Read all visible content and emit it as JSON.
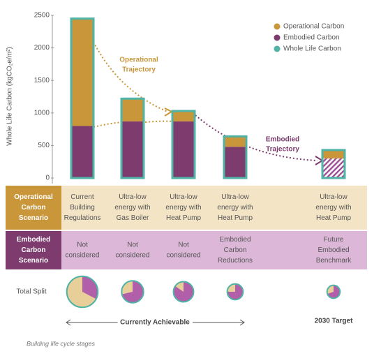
{
  "chart_data": {
    "type": "bar",
    "y_label": "Whole Life Carbon (kgCO₂e/m²)",
    "categories": [
      null,
      null,
      null,
      null,
      null
    ],
    "series": [
      {
        "name": "Operational Carbon",
        "color": "#c9963a",
        "values": [
          1650,
          350,
          160,
          160,
          130
        ]
      },
      {
        "name": "Embodied Carbon",
        "color": "#7d3b6e",
        "values": [
          800,
          870,
          870,
          480,
          300
        ],
        "hatch": [
          false,
          false,
          false,
          false,
          true
        ]
      },
      {
        "name": "Whole Life Carbon",
        "color": "#4fb3a6",
        "values": [
          2450,
          1220,
          1030,
          640,
          430
        ]
      }
    ],
    "ylim": [
      0,
      2500
    ],
    "yticks": [
      0,
      500,
      1000,
      1500,
      2000,
      2500
    ],
    "annotations": [
      {
        "text": [
          "Operational",
          "Trajectory"
        ]
      },
      {
        "text": [
          "Embodied",
          "Trajectory"
        ]
      }
    ],
    "table": {
      "rows": [
        {
          "header": [
            "Operational",
            "Carbon",
            "Scenario"
          ],
          "cells": [
            [
              "Current",
              "Building",
              "Regulations"
            ],
            [
              "Ultra-low",
              "energy with",
              "Gas Boiler"
            ],
            [
              "Ultra-low",
              "energy with",
              "Heat Pump"
            ],
            [
              "Ultra-low",
              "energy with",
              "Heat Pump"
            ],
            [
              "Ultra-low",
              "energy with",
              "Heat Pump"
            ]
          ]
        },
        {
          "header": [
            "Embodied",
            "Carbon",
            "Scenario"
          ],
          "cells": [
            [
              "Not",
              "considered"
            ],
            [
              "Not",
              "considered"
            ],
            [
              "Not",
              "considered"
            ],
            [
              "Embodied",
              "Carbon",
              "Reductions"
            ],
            [
              "Future",
              "Embodied",
              "Benchmark"
            ]
          ]
        }
      ]
    },
    "split_label": "Total Split",
    "achievable_label": "Currently Achievable",
    "target_label": "2030 Target",
    "footnote": "Building life cycle stages"
  }
}
